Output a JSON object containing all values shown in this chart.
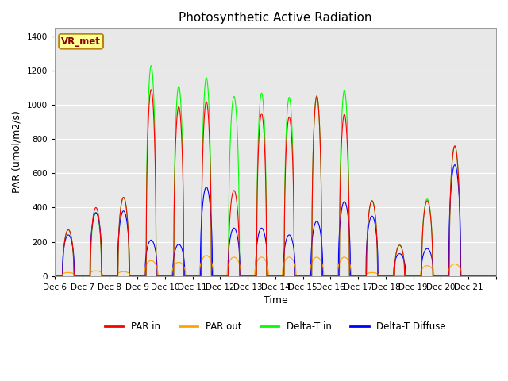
{
  "title": "Photosynthetic Active Radiation",
  "ylabel": "PAR (umol/m2/s)",
  "xlabel": "Time",
  "ylim": [
    0,
    1450
  ],
  "yticks": [
    0,
    200,
    400,
    600,
    800,
    1000,
    1200,
    1400
  ],
  "legend_labels": [
    "PAR in",
    "PAR out",
    "Delta-T in",
    "Delta-T Diffuse"
  ],
  "legend_colors": [
    "red",
    "orange",
    "lime",
    "blue"
  ],
  "station_label": "VR_met",
  "n_days": 16,
  "n_pts": 144,
  "day_peaks": {
    "par_in": [
      270,
      400,
      460,
      1090,
      990,
      1020,
      500,
      950,
      930,
      1050,
      945,
      440,
      180,
      440,
      760,
      0
    ],
    "par_out": [
      20,
      30,
      25,
      90,
      80,
      120,
      110,
      110,
      110,
      110,
      110,
      20,
      0,
      60,
      70,
      0
    ],
    "delta_in": [
      270,
      370,
      460,
      1230,
      1110,
      1160,
      1050,
      1070,
      1045,
      1055,
      1085,
      440,
      180,
      450,
      760,
      0
    ],
    "delta_diff": [
      240,
      370,
      380,
      210,
      185,
      520,
      280,
      280,
      240,
      320,
      435,
      350,
      130,
      160,
      650,
      0
    ]
  },
  "day_widths": {
    "par_in": [
      0.2,
      0.2,
      0.2,
      0.18,
      0.18,
      0.18,
      0.2,
      0.18,
      0.18,
      0.18,
      0.18,
      0.2,
      0.18,
      0.2,
      0.2,
      0
    ],
    "par_out": [
      0.25,
      0.25,
      0.25,
      0.25,
      0.25,
      0.25,
      0.25,
      0.25,
      0.25,
      0.25,
      0.25,
      0.25,
      0.25,
      0.25,
      0.25,
      0
    ],
    "delta_in": [
      0.2,
      0.2,
      0.2,
      0.18,
      0.18,
      0.18,
      0.2,
      0.18,
      0.18,
      0.18,
      0.18,
      0.2,
      0.18,
      0.2,
      0.2,
      0
    ],
    "delta_diff": [
      0.22,
      0.22,
      0.22,
      0.22,
      0.22,
      0.22,
      0.22,
      0.22,
      0.22,
      0.22,
      0.22,
      0.22,
      0.22,
      0.22,
      0.22,
      0
    ]
  },
  "xtick_labels": [
    "Dec 6",
    "Dec 7",
    "Dec 8",
    "Dec 9",
    "Dec 10",
    "Dec 11",
    "Dec 12",
    "Dec 13",
    "Dec 14",
    "Dec 15",
    "Dec 16",
    "Dec 17",
    "Dec 18",
    "Dec 19",
    "Dec 20",
    "Dec 21"
  ]
}
